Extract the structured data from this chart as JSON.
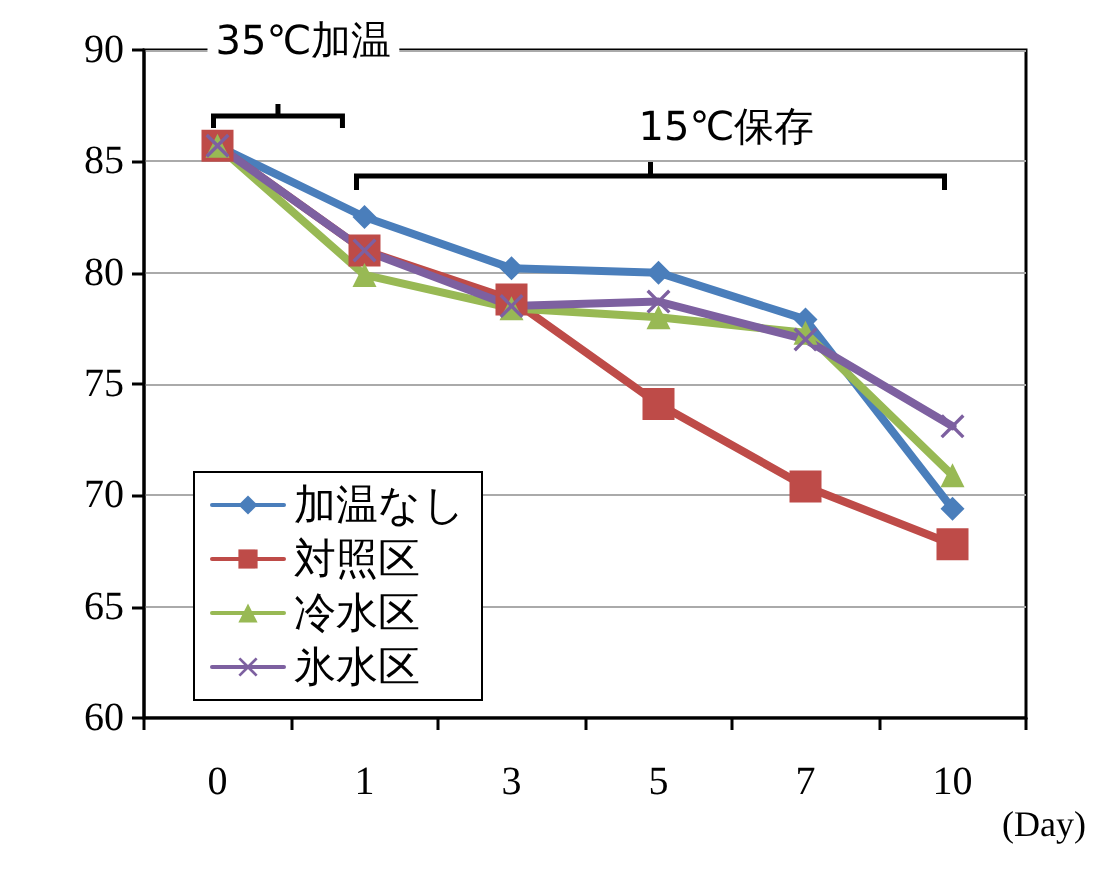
{
  "chart_data": {
    "type": "line",
    "xlabel": "(Day)",
    "categories": [
      "0",
      "1",
      "3",
      "5",
      "7",
      "10"
    ],
    "ylim": [
      60,
      90
    ],
    "yticks": [
      60,
      65,
      70,
      75,
      80,
      85,
      90
    ],
    "grid": "y",
    "legend": "bottom left",
    "line_style": "solid",
    "annotations": [
      "35℃加温",
      "15℃保存"
    ],
    "series": [
      {
        "name": "加温なし",
        "color": "#4a7ebb",
        "marker": "diamond",
        "values": [
          85.7,
          82.5,
          80.2,
          80.0,
          77.9,
          69.4
        ]
      },
      {
        "name": "対照区",
        "color": "#be4b48",
        "marker": "square",
        "values": [
          85.7,
          81.0,
          78.8,
          74.1,
          70.4,
          67.8
        ]
      },
      {
        "name": "冷水区",
        "color": "#98b954",
        "marker": "triangle",
        "values": [
          85.7,
          79.9,
          78.4,
          78.0,
          77.3,
          70.9
        ]
      },
      {
        "name": "氷水区",
        "color": "#7d60a0",
        "marker": "cross",
        "values": [
          85.7,
          81.0,
          78.5,
          78.7,
          77.0,
          73.1
        ]
      }
    ]
  }
}
